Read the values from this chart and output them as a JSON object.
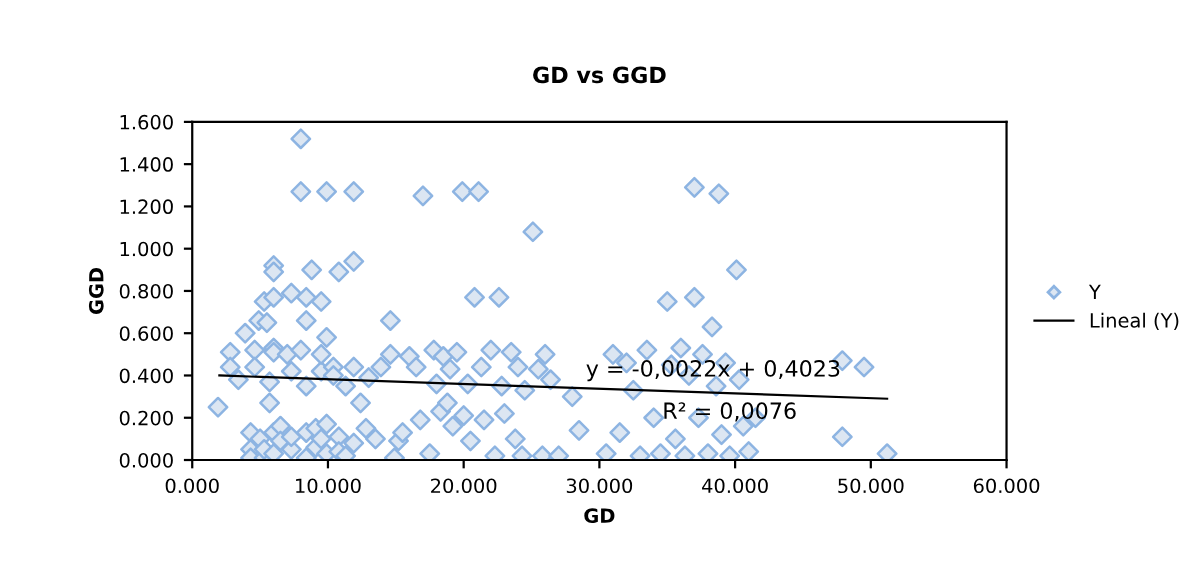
{
  "chart_data": {
    "type": "scatter",
    "title": "GD vs GGD",
    "xlabel": "GD",
    "ylabel": "GGD",
    "xlim": [
      0,
      60
    ],
    "ylim": [
      0,
      1.6
    ],
    "xticks": [
      {
        "value": 0,
        "label": "0.000"
      },
      {
        "value": 10,
        "label": "10.000"
      },
      {
        "value": 20,
        "label": "20.000"
      },
      {
        "value": 30,
        "label": "30.000"
      },
      {
        "value": 40,
        "label": "40.000"
      },
      {
        "value": 50,
        "label": "50.000"
      },
      {
        "value": 60,
        "label": "60.000"
      }
    ],
    "yticks": [
      {
        "value": 0,
        "label": "0.000"
      },
      {
        "value": 0.2,
        "label": "0.200"
      },
      {
        "value": 0.4,
        "label": "0.400"
      },
      {
        "value": 0.6,
        "label": "0.600"
      },
      {
        "value": 0.8,
        "label": "0.800"
      },
      {
        "value": 1.0,
        "label": "1.000"
      },
      {
        "value": 1.2,
        "label": "1.200"
      },
      {
        "value": 1.4,
        "label": "1.400"
      },
      {
        "value": 1.6,
        "label": "1.600"
      }
    ],
    "grid": false,
    "legend": "right",
    "marker": "diamond",
    "annotations": [
      "y = -0,0022x + 0,4023",
      "R² = 0,0076"
    ],
    "series": [
      {
        "name": "Y",
        "color": "#8db4e2",
        "x": [
          1.9,
          2.8,
          2.8,
          3.4,
          3.9,
          4.9,
          5.3,
          5.5,
          4.6,
          4.6,
          4.3,
          4.3,
          4.3,
          5.0,
          5.3,
          5.3,
          5.7,
          5.7,
          6.0,
          6.0,
          6.0,
          6.0,
          6.0,
          6.0,
          6.0,
          6.5,
          6.5,
          7.0,
          7.3,
          7.3,
          7.3,
          7.3,
          8.0,
          8.0,
          8.0,
          8.4,
          8.4,
          8.4,
          8.4,
          8.4,
          8.8,
          9.1,
          9.1,
          9.5,
          9.5,
          9.5,
          9.5,
          9.9,
          9.9,
          9.9,
          9.9,
          10.4,
          10.4,
          10.8,
          10.8,
          10.8,
          11.3,
          11.3,
          11.9,
          11.9,
          11.9,
          11.9,
          12.4,
          12.8,
          13.0,
          13.5,
          13.9,
          14.6,
          14.6,
          14.9,
          15.2,
          15.5,
          16.0,
          16.5,
          16.8,
          17.0,
          17.5,
          17.8,
          18.0,
          18.3,
          18.5,
          18.8,
          19.0,
          19.2,
          19.5,
          19.9,
          20.0,
          20.3,
          20.5,
          20.8,
          21.1,
          21.3,
          21.5,
          22.0,
          22.3,
          22.6,
          22.8,
          23.0,
          23.5,
          23.8,
          24.0,
          24.3,
          24.5,
          25.1,
          25.5,
          25.8,
          26.0,
          26.4,
          27.0,
          28.0,
          28.5,
          30.5,
          31.0,
          31.5,
          32.0,
          32.5,
          33.0,
          33.5,
          34.0,
          34.5,
          35.0,
          35.3,
          35.6,
          36.0,
          36.3,
          36.6,
          37.0,
          37.0,
          37.3,
          37.6,
          38.0,
          38.3,
          38.6,
          38.8,
          39.0,
          39.3,
          39.6,
          40.1,
          40.3,
          40.6,
          41.0,
          41.5,
          47.9,
          47.9,
          49.5,
          51.2
        ],
        "values": [
          0.25,
          0.51,
          0.44,
          0.38,
          0.6,
          0.66,
          0.75,
          0.65,
          0.52,
          0.44,
          0.13,
          0.05,
          0.01,
          0.1,
          0.01,
          0.05,
          0.27,
          0.37,
          0.92,
          0.89,
          0.53,
          0.51,
          0.77,
          0.13,
          0.03,
          0.16,
          0.09,
          0.5,
          0.79,
          0.42,
          0.05,
          0.11,
          1.52,
          1.27,
          0.52,
          0.77,
          0.66,
          0.35,
          0.13,
          0.01,
          0.9,
          0.15,
          0.06,
          0.75,
          0.42,
          0.5,
          0.1,
          1.27,
          0.58,
          0.17,
          0.03,
          0.44,
          0.4,
          0.89,
          0.11,
          0.04,
          0.35,
          0.02,
          1.27,
          0.94,
          0.44,
          0.08,
          0.27,
          0.15,
          0.39,
          0.1,
          0.44,
          0.66,
          0.5,
          0.01,
          0.09,
          0.13,
          0.49,
          0.44,
          0.19,
          1.25,
          0.03,
          0.52,
          0.36,
          0.23,
          0.49,
          0.27,
          0.43,
          0.16,
          0.51,
          1.27,
          0.21,
          0.36,
          0.09,
          0.77,
          1.27,
          0.44,
          0.19,
          0.52,
          0.02,
          0.77,
          0.35,
          0.22,
          0.51,
          0.1,
          0.44,
          0.02,
          0.33,
          1.08,
          0.43,
          0.02,
          0.5,
          0.38,
          0.02,
          0.3,
          0.14,
          0.03,
          0.5,
          0.13,
          0.46,
          0.33,
          0.02,
          0.52,
          0.2,
          0.03,
          0.75,
          0.45,
          0.1,
          0.53,
          0.02,
          0.4,
          1.29,
          0.77,
          0.2,
          0.5,
          0.03,
          0.63,
          0.35,
          1.26,
          0.12,
          0.46,
          0.02,
          0.9,
          0.38,
          0.16,
          0.04,
          0.2,
          0.47,
          0.11,
          0.44,
          0.03
        ]
      },
      {
        "name": "Lineal (Y)",
        "type": "line",
        "color": "#000000",
        "marker": "none",
        "line_style": "solid",
        "x": [
          2.0,
          51.2
        ],
        "values": [
          0.4,
          0.29
        ]
      }
    ]
  }
}
